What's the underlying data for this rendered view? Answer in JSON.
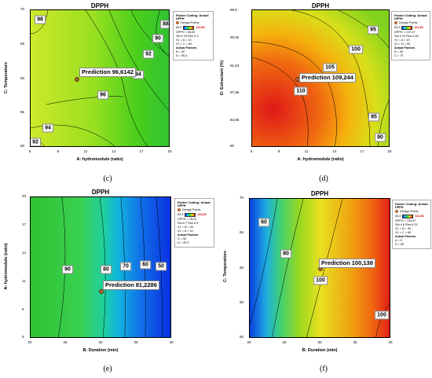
{
  "chart_data": [
    {
      "type": "contour",
      "title": "DPPH",
      "xlabel": "A: hydromodule (ratio)",
      "ylabel": "C: Temperature",
      "xticks": [
        "5",
        "8",
        "11",
        "14",
        "17",
        "20"
      ],
      "yticks": [
        "50",
        "55",
        "60",
        "65",
        "70"
      ],
      "xlim": [
        5,
        20
      ],
      "ylim": [
        50,
        70
      ],
      "contour_levels": [
        "98",
        "88",
        "90",
        "92",
        "94",
        "96",
        "94",
        "92"
      ],
      "prediction": {
        "x": 10.0,
        "y": 60.0,
        "label": "Prediction  96,6142"
      },
      "legend": {
        "factor_coding": "Factor Coding: Actual",
        "response": "DPPH",
        "design_points": "Design Points",
        "min": "83,3",
        "max": "111,83",
        "lines": [
          "DPPH = 96,62",
          "Std # 23 Run # 3",
          "X1 = A = 10",
          "X2 = C = 60"
        ],
        "actual_factors_title": "Actual Factors",
        "actual_factors": [
          "B = 30",
          "D = 95,5"
        ]
      },
      "caption": "(c)",
      "colors": [
        "#cfe82a",
        "#98e020",
        "#4ccf1c",
        "#2fc232"
      ]
    },
    {
      "type": "contour",
      "title": "DPPH",
      "xlabel": "A: hydromodule (ratio)",
      "ylabel": "D: Extractant (%)",
      "xticks": [
        "5",
        "8",
        "11",
        "14",
        "17",
        "20"
      ],
      "yticks": [
        "80",
        "83,96",
        "87,96",
        "91,84",
        "95,92",
        "99,9"
      ],
      "xlim": [
        5,
        20
      ],
      "ylim": [
        80,
        99.9
      ],
      "contour_levels": [
        "95",
        "100",
        "105",
        "110",
        "95",
        "90"
      ],
      "prediction": {
        "x": 10.0,
        "y": 89.9,
        "label": "Prediction  109,244"
      },
      "legend": {
        "factor_coding": "Factor Coding: Actual",
        "response": "DPPH",
        "design_points": "Design Points",
        "min": "83,3",
        "max": "111,83",
        "lines": [
          "DPPH = 107,07",
          "Std # 10 Run # 25",
          "X1 = A = 10",
          "X2 = D = 90"
        ],
        "actual_factors_title": "Actual Factors",
        "actual_factors": [
          "B = 30",
          "C = 70"
        ]
      },
      "caption": "(d)",
      "colors": [
        "#e01818",
        "#f06a10",
        "#f5b20d",
        "#d8e01a",
        "#7fd21e"
      ]
    },
    {
      "type": "contour",
      "title": "DPPH",
      "xlabel": "B: Duration (min)",
      "ylabel": "A: hydromodule (ratio)",
      "xticks": [
        "20",
        "25",
        "30",
        "35",
        "40"
      ],
      "yticks": [
        "5",
        "8",
        "11",
        "14",
        "17",
        "20"
      ],
      "xlim": [
        20,
        40
      ],
      "ylim": [
        5,
        20
      ],
      "contour_levels": [
        "90",
        "80",
        "70",
        "60",
        "50"
      ],
      "prediction": {
        "x": 30,
        "y": 10,
        "label": "Prediction  81,2286"
      },
      "legend": {
        "factor_coding": "Factor Coding: Actual",
        "response": "DPPH",
        "design_points": "Design Points",
        "min": "83,3",
        "max": "111,83",
        "lines": [
          "DPPH = 78,01",
          "Std # 7 Run # 9",
          "X1 = B = 30",
          "X2 = A = 10"
        ],
        "actual_factors_title": "Actual Factors",
        "actual_factors": [
          "C = 50",
          "D = 99,9"
        ]
      },
      "caption": "(e)",
      "colors": [
        "#2fc232",
        "#1fcfa0",
        "#10b4e0",
        "#1070e8",
        "#0a2de0"
      ]
    },
    {
      "type": "contour",
      "title": "DPPH",
      "xlabel": "B: Duration (min)",
      "ylabel": "C: Temperature",
      "xticks": [
        "20",
        "25",
        "30",
        "35",
        "40"
      ],
      "yticks": [
        "50",
        "55",
        "60",
        "65",
        "70"
      ],
      "xlim": [
        20,
        40
      ],
      "ylim": [
        50,
        70
      ],
      "contour_levels": [
        "60",
        "80",
        "100",
        "100"
      ],
      "prediction": {
        "x": 30,
        "y": 60,
        "label": "Prediction  100,138"
      },
      "legend": {
        "factor_coding": "Factor Coding: Actual",
        "response": "DPPH",
        "design_points": "Design Points",
        "min": "83,3",
        "max": "111,83",
        "lines": [
          "DPPH = 100,67",
          "Std # 6 Run # 23",
          "X1 = B = 30",
          "X2 = C = 60"
        ],
        "actual_factors_title": "Actual Factors",
        "actual_factors": [
          "A = 5",
          "D = 80"
        ]
      },
      "caption": "(f)",
      "colors": [
        "#0a40e0",
        "#20d8c8",
        "#60d020",
        "#e0e020",
        "#f08010",
        "#e01010"
      ]
    }
  ],
  "pred_info_texts": [
    "",
    "",
    "",
    ""
  ]
}
